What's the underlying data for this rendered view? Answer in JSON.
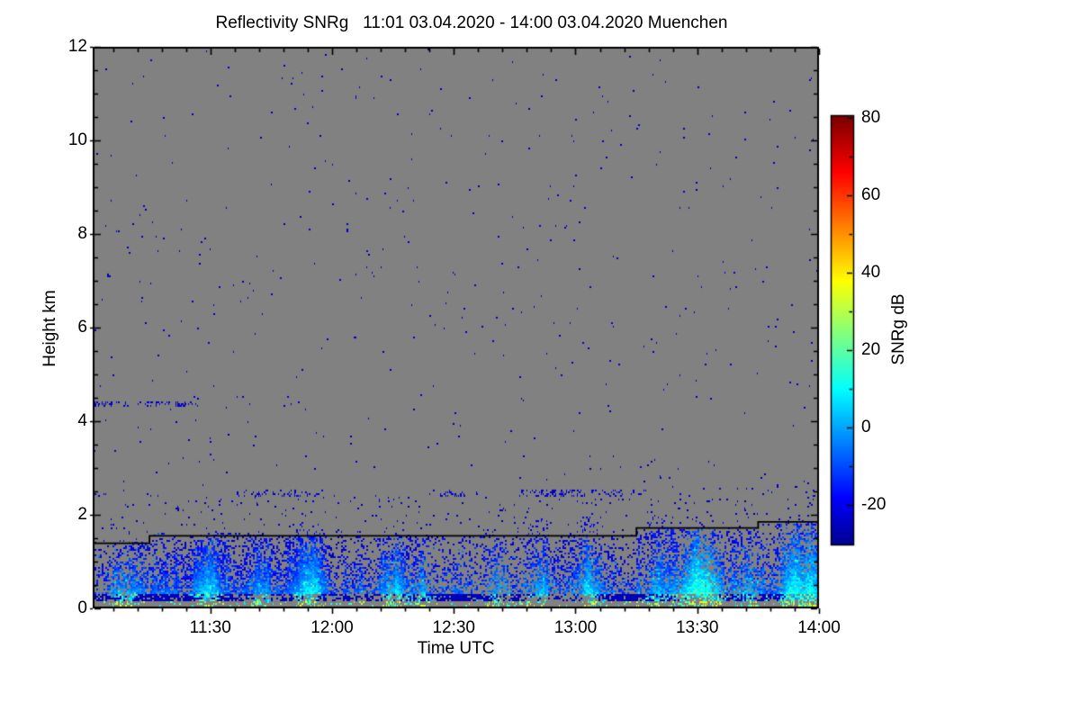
{
  "chart_data": {
    "type": "heatmap",
    "title": "Reflectivity SNRg   11:01 03.04.2020 - 14:00 03.04.2020 Muenchen",
    "quantity": "Reflectivity SNRg",
    "site": "Muenchen",
    "time_start": "11:01 03.04.2020",
    "time_end": "14:00 03.04.2020",
    "xlabel": "Time UTC",
    "ylabel": "Height km",
    "x_ticks": [
      "11:30",
      "12:00",
      "12:30",
      "13:00",
      "13:30",
      "14:00"
    ],
    "x_tick_minutes": [
      29,
      59,
      89,
      119,
      149,
      179
    ],
    "x_total_minutes": 179,
    "x_minor_step_min": 6,
    "y_ticks": [
      "0",
      "2",
      "4",
      "6",
      "8",
      "10",
      "12"
    ],
    "y_tick_values": [
      0,
      2,
      4,
      6,
      8,
      10,
      12
    ],
    "y_range_km": [
      0,
      12
    ],
    "y_minor_step_km": 0.5,
    "grid": false,
    "no_data_color": "#818181",
    "colorbar": {
      "label": "SNRg dB",
      "tick_labels": [
        "80",
        "60",
        "40",
        "20",
        "0",
        "-20"
      ],
      "tick_values": [
        80,
        60,
        40,
        20,
        0,
        -20
      ],
      "minor_step_db": 10,
      "value_range": [
        -32,
        80
      ],
      "colormap": "jet"
    },
    "features": {
      "boundary_layer_top_line": {
        "color": "#000000",
        "segments": [
          {
            "from_min": 0,
            "to_min": 14,
            "km": 1.4
          },
          {
            "from_min": 14,
            "to_min": 134,
            "km": 1.56
          },
          {
            "from_min": 134,
            "to_min": 164,
            "km": 1.73
          },
          {
            "from_min": 164,
            "to_min": 179,
            "km": 1.86
          }
        ]
      },
      "mixed_layer": {
        "top_km_typical": 1.5,
        "snr_db_near_ground": 20,
        "snr_db_at_top": -24
      },
      "dark_layer": {
        "km_bottom": 0.14,
        "km_top": 0.3,
        "snr_db": -28
      },
      "surface_gap_km": 0.05,
      "surface_speckle": {
        "km_bottom": 0.05,
        "km_top": 0.14,
        "snr_db_range": [
          6,
          36
        ]
      },
      "noise_bands": [
        {
          "km": 2.46,
          "extent_min": [
            0,
            179
          ],
          "character": "patchy",
          "snr_db": -23
        },
        {
          "km": 4.36,
          "extent_min": [
            0,
            26
          ],
          "character": "dense",
          "snr_db": -24
        }
      ],
      "scattered_noise": {
        "density": 0.0045,
        "snr_db": -25
      },
      "plumes": [
        {
          "min": 8,
          "width_min": 3,
          "top_km": 1.55,
          "strength": 0.6
        },
        {
          "min": 28.5,
          "width_min": 3,
          "top_km": 1.65,
          "strength": 0.8
        },
        {
          "min": 41.5,
          "width_min": 2.5,
          "top_km": 1.55,
          "strength": 0.5
        },
        {
          "min": 53.5,
          "width_min": 3,
          "top_km": 1.95,
          "strength": 1.0
        },
        {
          "min": 74,
          "width_min": 3,
          "top_km": 1.6,
          "strength": 0.7
        },
        {
          "min": 81,
          "width_min": 2.5,
          "top_km": 1.6,
          "strength": 0.5
        },
        {
          "min": 99.5,
          "width_min": 2.5,
          "top_km": 1.6,
          "strength": 0.5
        },
        {
          "min": 110,
          "width_min": 2.5,
          "top_km": 2.05,
          "strength": 0.6
        },
        {
          "min": 122.5,
          "width_min": 3,
          "top_km": 2.15,
          "strength": 0.8
        },
        {
          "min": 139,
          "width_min": 2.5,
          "top_km": 2.05,
          "strength": 0.5
        },
        {
          "min": 148,
          "width_min": 4,
          "top_km": 1.7,
          "strength": 1.0
        },
        {
          "min": 152.5,
          "width_min": 3,
          "top_km": 1.7,
          "strength": 0.9
        },
        {
          "min": 162,
          "width_min": 3,
          "top_km": 1.7,
          "strength": 0.5
        },
        {
          "min": 172,
          "width_min": 3,
          "top_km": 1.8,
          "strength": 0.8
        },
        {
          "min": 177,
          "width_min": 3,
          "top_km": 1.8,
          "strength": 0.9
        }
      ]
    }
  }
}
